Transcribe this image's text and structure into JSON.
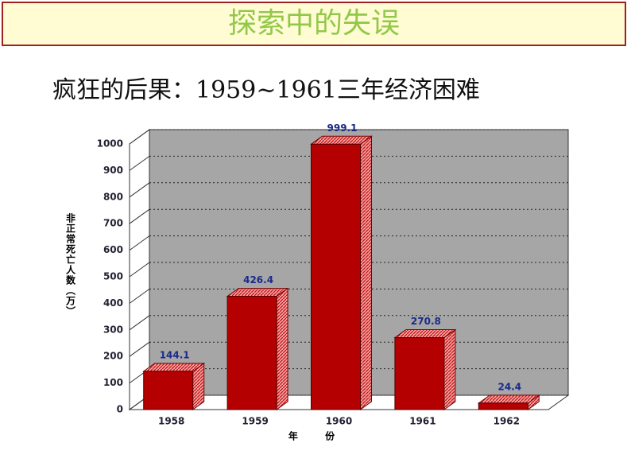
{
  "header": {
    "title": "探索中的失误"
  },
  "subtitle": "疯狂的后果：1959~1961三年经济困难",
  "chart_data": {
    "type": "bar",
    "categories": [
      "1958",
      "1959",
      "1960",
      "1961",
      "1962"
    ],
    "values": [
      144.1,
      426.4,
      999.1,
      270.8,
      24.4
    ],
    "color": "#b40000",
    "ylim": [
      0,
      1000
    ],
    "yticks": [
      0,
      100,
      200,
      300,
      400,
      500,
      600,
      700,
      800,
      900,
      1000
    ],
    "grid": true,
    "y_label": "非正常死亡人数（万）",
    "x_label": "年 份"
  }
}
